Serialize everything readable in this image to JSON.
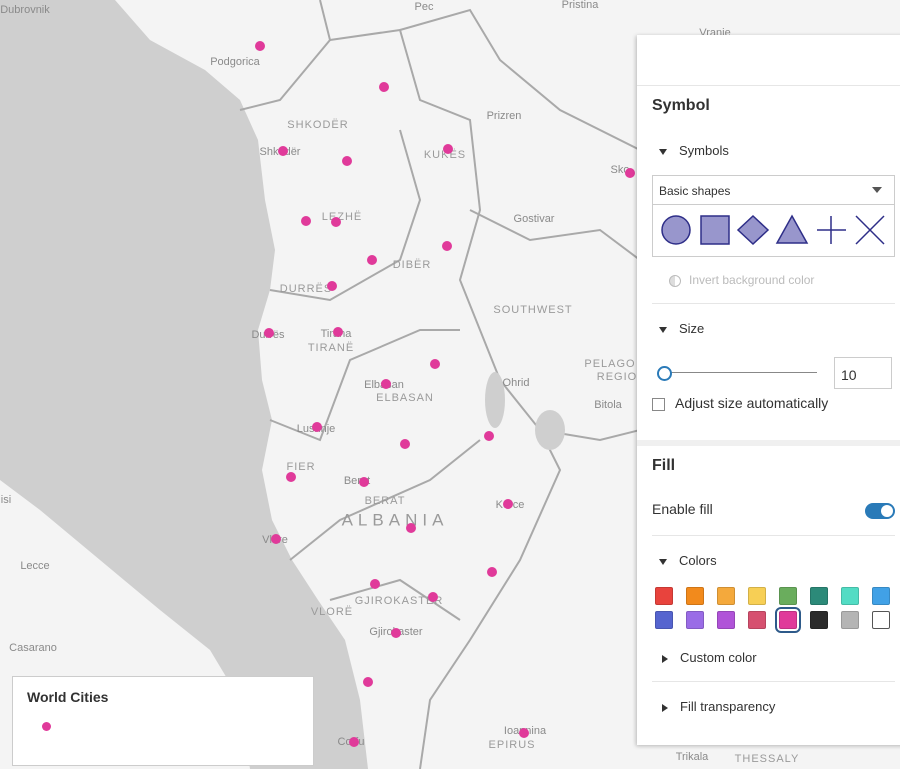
{
  "map": {
    "labels": [
      "Dubrovnik",
      "Pec",
      "Pristina",
      "Vranje",
      "Podgorica",
      "SHKODËR",
      "Shkodër",
      "KUKËS",
      "Prizren",
      "Sko",
      "Gostivar",
      "LEZHË",
      "DIBËR",
      "DURRËS",
      "SOUTHWEST",
      "Durrës",
      "Tirana",
      "TIRANË",
      "PELAGO",
      "REGIO",
      "Ohrid",
      "Elbasan",
      "ELBASAN",
      "Bitola",
      "Lushnje",
      "FIER",
      "Berat",
      "BERAT",
      "ALBANIA",
      "Korce",
      "Vlore",
      "Lecce",
      "VLORË",
      "GJIROKASTËR",
      "Gjirokaster",
      "Casarano",
      "Ioannina",
      "EPIRUS",
      "Corfu",
      "Trikala",
      "THESSALY",
      "isi"
    ]
  },
  "legend": {
    "title": "World Cities"
  },
  "panel": {
    "symbol_title": "Symbol",
    "symbols_label": "Symbols",
    "symbols_select": "Basic shapes",
    "invert_label": "Invert background color",
    "size_label": "Size",
    "size_value": 10,
    "adjust_label": "Adjust size automatically",
    "fill_title": "Fill",
    "enable_fill_label": "Enable fill",
    "colors_label": "Colors",
    "custom_color_label": "Custom color",
    "fill_transparency_label": "Fill transparency",
    "palette": [
      "#e8433d",
      "#f28a1c",
      "#f4a93c",
      "#f7cf55",
      "#6aad5d",
      "#2c8a79",
      "#52dcc4",
      "#41a1e6",
      "#5564cf",
      "#9a6ce6",
      "#b053d8",
      "#d6506f",
      "#e03a9a",
      "#2b2b2b",
      "#b5b5b5",
      "#ffffff"
    ]
  }
}
